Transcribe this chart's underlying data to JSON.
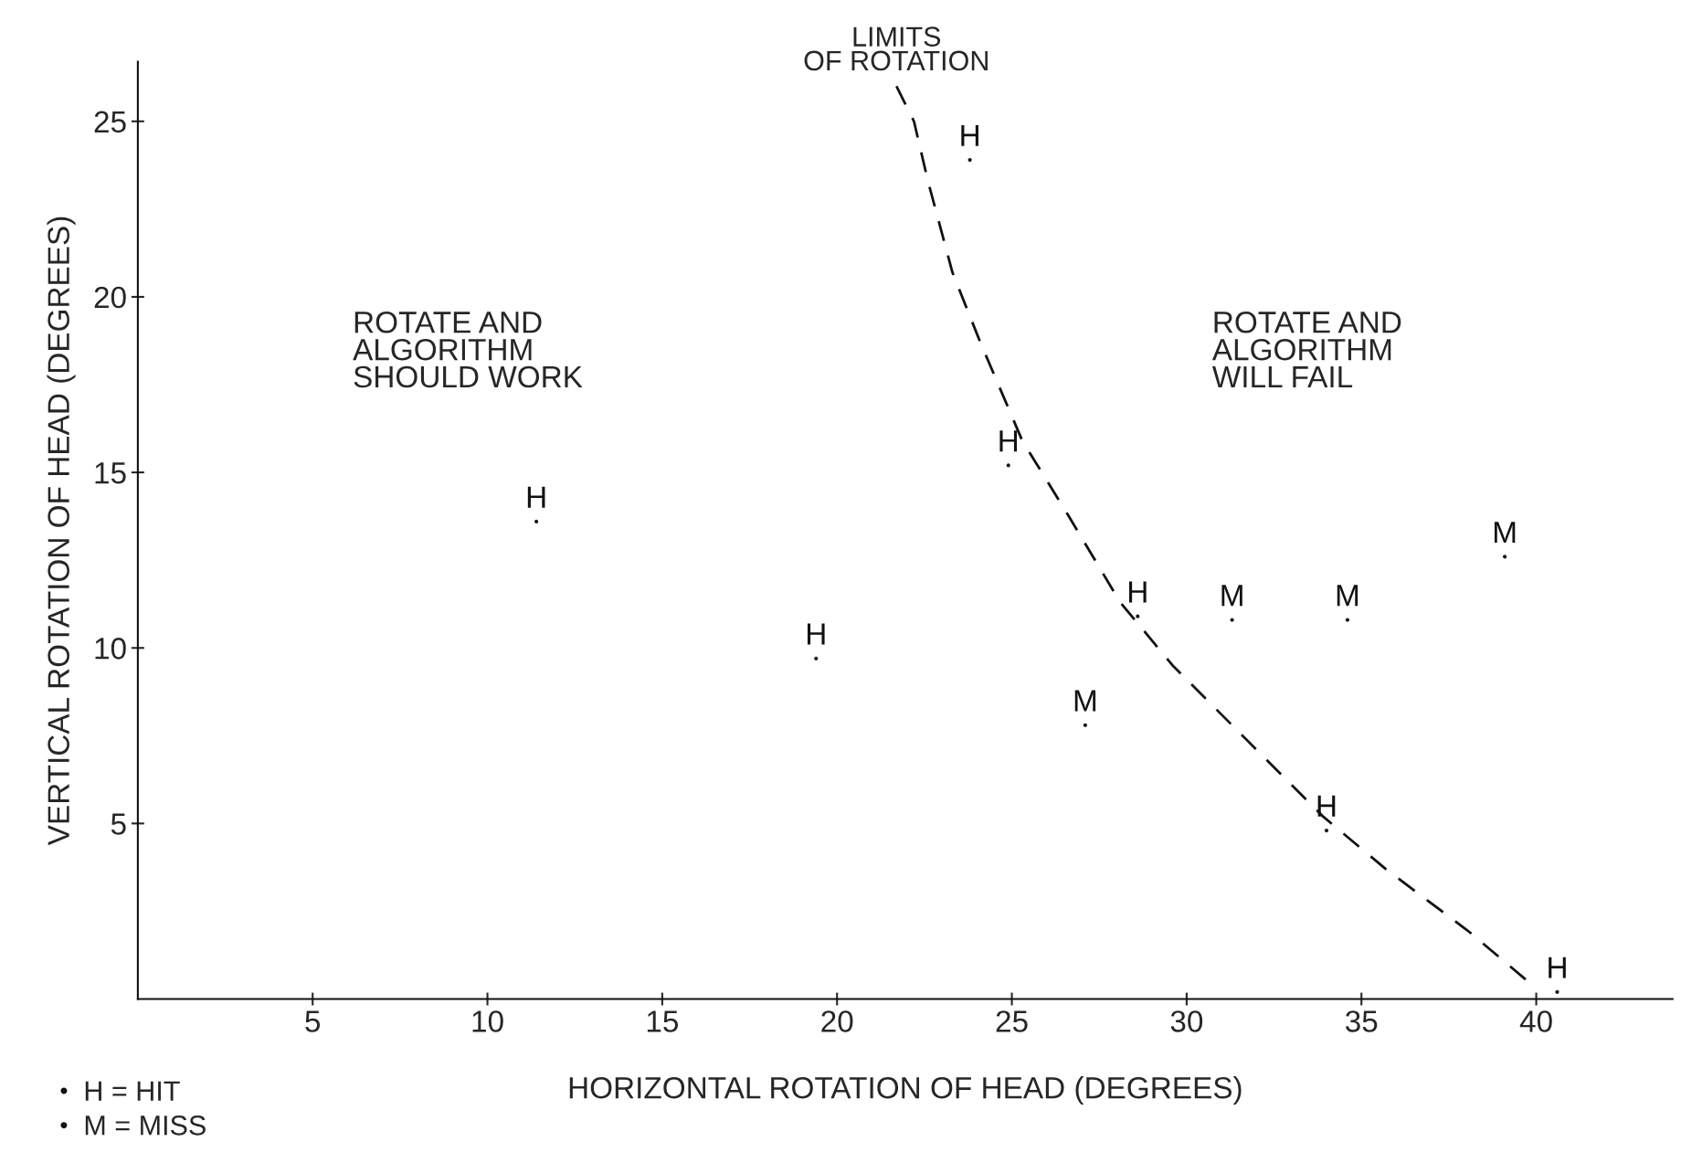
{
  "chart_data": {
    "type": "scatter",
    "xlabel": "HORIZONTAL ROTATION OF HEAD (DEGREES)",
    "ylabel": "VERTICAL ROTATION OF HEAD (DEGREES)",
    "xlim": [
      0,
      43.9
    ],
    "ylim": [
      0,
      26.7
    ],
    "xticks": [
      5,
      10,
      15,
      20,
      25,
      30,
      35,
      40
    ],
    "yticks": [
      5,
      10,
      15,
      20,
      25
    ],
    "grid": false,
    "legend": "bottom left",
    "series": [
      {
        "name": "H = HIT",
        "color": "#111111",
        "marker": "circle",
        "x": [
          23.8,
          24.9,
          11.4,
          19.4,
          28.6,
          34.0,
          40.6
        ],
        "values": [
          23.9,
          15.2,
          13.6,
          9.7,
          10.9,
          4.8,
          0.2
        ],
        "value_labels": [
          "H",
          "H",
          "H",
          "H",
          "H",
          "H",
          "H"
        ]
      },
      {
        "name": "M = MISS",
        "color": "#111111",
        "marker": "circle",
        "x": [
          31.3,
          34.6,
          39.1,
          27.1
        ],
        "values": [
          10.8,
          10.8,
          12.6,
          7.8
        ],
        "value_labels": [
          "M",
          "M",
          "M",
          "M"
        ]
      },
      {
        "type": "line",
        "name": "LIMITS\nOF ROTATION",
        "color": "#111111",
        "line_style": "dashed",
        "marker": "none",
        "x": [
          21.7,
          22.2,
          22.6,
          23.3,
          24.1,
          25.3,
          26.6,
          28.1,
          29.6,
          31.7,
          33.9,
          35.7,
          38.1,
          40.0
        ],
        "values": [
          26.0,
          25.0,
          23.3,
          20.7,
          18.7,
          15.9,
          13.8,
          11.3,
          9.5,
          7.4,
          5.2,
          3.7,
          1.9,
          0.3
        ]
      }
    ],
    "annotations": [
      "ROTATE AND\nALGORITHM\nSHOULD WORK",
      "ROTATE AND\nALGORITHM\nWILL FAIL"
    ]
  }
}
